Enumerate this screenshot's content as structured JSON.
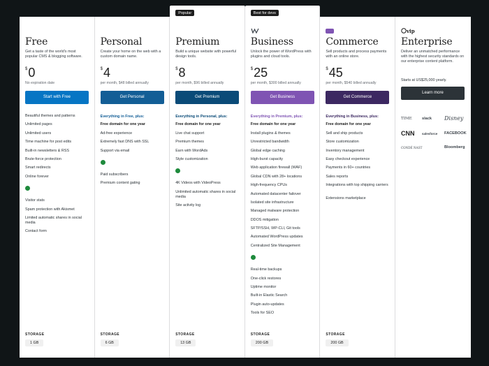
{
  "plans": [
    {
      "name": "Free",
      "desc": "Get a taste of the world's most popular CMS & blogging software.",
      "currency": "$",
      "price": "0",
      "billing": "No expiration date",
      "cta": "Start with Free",
      "cta_color": "#0675c4",
      "features_head": "",
      "features": [
        "Beautiful themes and patterns",
        "Unlimited pages",
        "Unlimited users",
        "Time machine for post edits",
        "Built-in newsletters & RSS",
        "Brute-force protection",
        "Smart redirects",
        "Online forever"
      ],
      "extras": [
        "Visitor stats",
        "Spam protection with Akismet",
        "Limited automatic shares in social media",
        "Contact form"
      ],
      "storage": "1 GB"
    },
    {
      "name": "Personal",
      "desc": "Create your home on the web with a custom domain name.",
      "currency": "$",
      "price": "4",
      "billing": "per month, $48 billed annually",
      "cta": "Get Personal",
      "cta_color": "#135e96",
      "features_head": "Everything in Free, plus:",
      "features": [
        "Free domain for one year",
        "Ad-free experience",
        "Extremely fast DNS with SSL",
        "Support via email"
      ],
      "extras": [
        "Paid subscribers",
        "Premium content gating"
      ],
      "storage": "6 GB"
    },
    {
      "name": "Premium",
      "badge": "Popular",
      "desc": "Build a unique website with powerful design tools.",
      "currency": "$",
      "price": "8",
      "billing": "per month, $96 billed annually",
      "cta": "Get Premium",
      "cta_color": "#0a4b78",
      "features_head": "Everything in Personal, plus:",
      "features": [
        "Free domain for one year",
        "Live chat support",
        "Premium themes",
        "Earn with WordAds",
        "Style customization"
      ],
      "extras": [
        "4K Videos with VideoPress",
        "Unlimited automatic shares in social media",
        "Site activity log"
      ],
      "storage": "13 GB"
    },
    {
      "name": "Business",
      "badge": "Best for devs",
      "desc": "Unlock the power of WordPress with plugins and cloud tools.",
      "currency": "$",
      "price": "25",
      "billing": "per month, $300 billed annually",
      "cta": "Get Business",
      "cta_color": "#7f54b3",
      "features_head": "Everything in Premium, plus:",
      "features": [
        "Free domain for one year",
        "Install plugins & themes",
        "Unrestricted bandwidth",
        "Global edge caching",
        "High-burst capacity",
        "Web application firewall (WAF)",
        "Global CDN with 28+ locations",
        "High-frequency CPUs",
        "Automated datacenter failover",
        "Isolated site infrastructure",
        "Managed malware protection",
        "DDOS mitigation",
        "SFTP/SSH, WP-CLI, Git tools",
        "Automated WordPress updates",
        "Centralized Site Management"
      ],
      "extras": [
        "Real-time backups",
        "One-click restores",
        "Uptime monitor",
        "Built-in Elastic Search",
        "Plugin auto-updates",
        "Tools for SEO"
      ],
      "storage": "200 GB"
    },
    {
      "name": "Commerce",
      "desc": "Sell products and process payments with an online store.",
      "currency": "$",
      "price": "45",
      "billing": "per month, $540 billed annually",
      "cta": "Get Commerce",
      "cta_color": "#3c2861",
      "features_head": "Everything in Business, plus:",
      "features": [
        "Free domain for one year",
        "Sell and ship products",
        "Store customization",
        "Inventory management",
        "Easy checkout experience",
        "Payments in 60+ countries",
        "Sales reports",
        "Integrations with top shipping carriers",
        "Extensions marketplace"
      ],
      "extras": [],
      "storage": "200 GB"
    }
  ],
  "enterprise": {
    "logo_text": "vip",
    "name": "Enterprise",
    "desc": "Deliver an unmatched performance with the highest security standards on our enterprise content platform.",
    "note": "Starts at US$25,000 yearly.",
    "cta": "Learn more",
    "cta_color": "#2c3338",
    "clients": [
      "TIME",
      "slack",
      "Disney",
      "CNN",
      "salesforce",
      "FACEBOOK",
      "CONDÉ NAST",
      "Bloomberg"
    ]
  },
  "storage_label": "STORAGE",
  "colors": {
    "page_bg": "#101517",
    "business_logo": "#3c434a",
    "commerce_logo": "#7f54b3",
    "wp_check": "#1e8a3c"
  }
}
